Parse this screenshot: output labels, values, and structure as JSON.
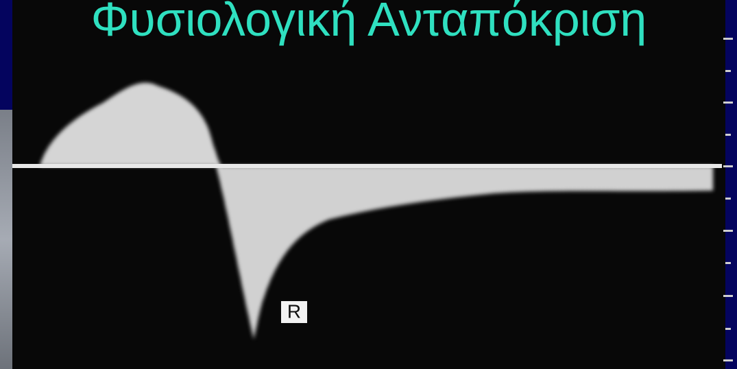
{
  "title": "Φυσιολογική Ανταπόκριση",
  "annotation": "R"
}
